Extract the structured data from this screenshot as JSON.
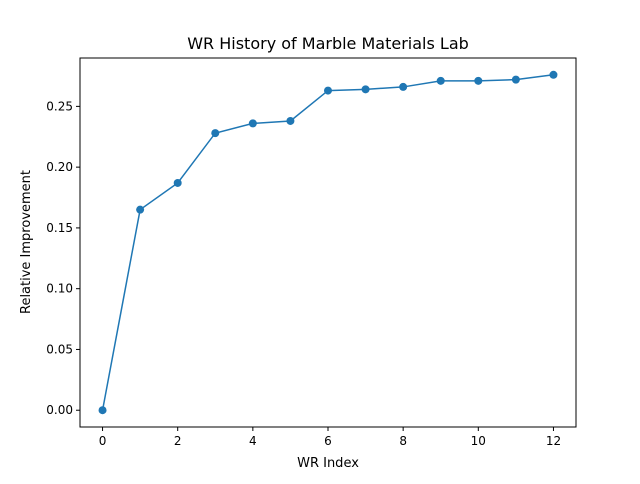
{
  "chart_data": {
    "type": "line",
    "title": "WR History of Marble Materials Lab",
    "xlabel": "WR Index",
    "ylabel": "Relative Improvement",
    "xlim": [
      -0.6,
      12.6
    ],
    "ylim": [
      -0.0138,
      0.2898
    ],
    "x_ticks": [
      0,
      2,
      4,
      6,
      8,
      10,
      12
    ],
    "y_ticks": [
      0.0,
      0.05,
      0.1,
      0.15,
      0.2,
      0.25
    ],
    "x_tick_labels": [
      "0",
      "2",
      "4",
      "6",
      "8",
      "10",
      "12"
    ],
    "y_tick_labels": [
      "0.00",
      "0.05",
      "0.10",
      "0.15",
      "0.20",
      "0.25"
    ],
    "grid": false,
    "series": [
      {
        "color": "#1f77b4",
        "marker": "circle",
        "x": [
          0,
          1,
          2,
          3,
          4,
          5,
          6,
          7,
          8,
          9,
          10,
          11,
          12
        ],
        "y": [
          0.0,
          0.165,
          0.187,
          0.228,
          0.236,
          0.238,
          0.263,
          0.264,
          0.266,
          0.271,
          0.271,
          0.272,
          0.276
        ]
      }
    ]
  }
}
